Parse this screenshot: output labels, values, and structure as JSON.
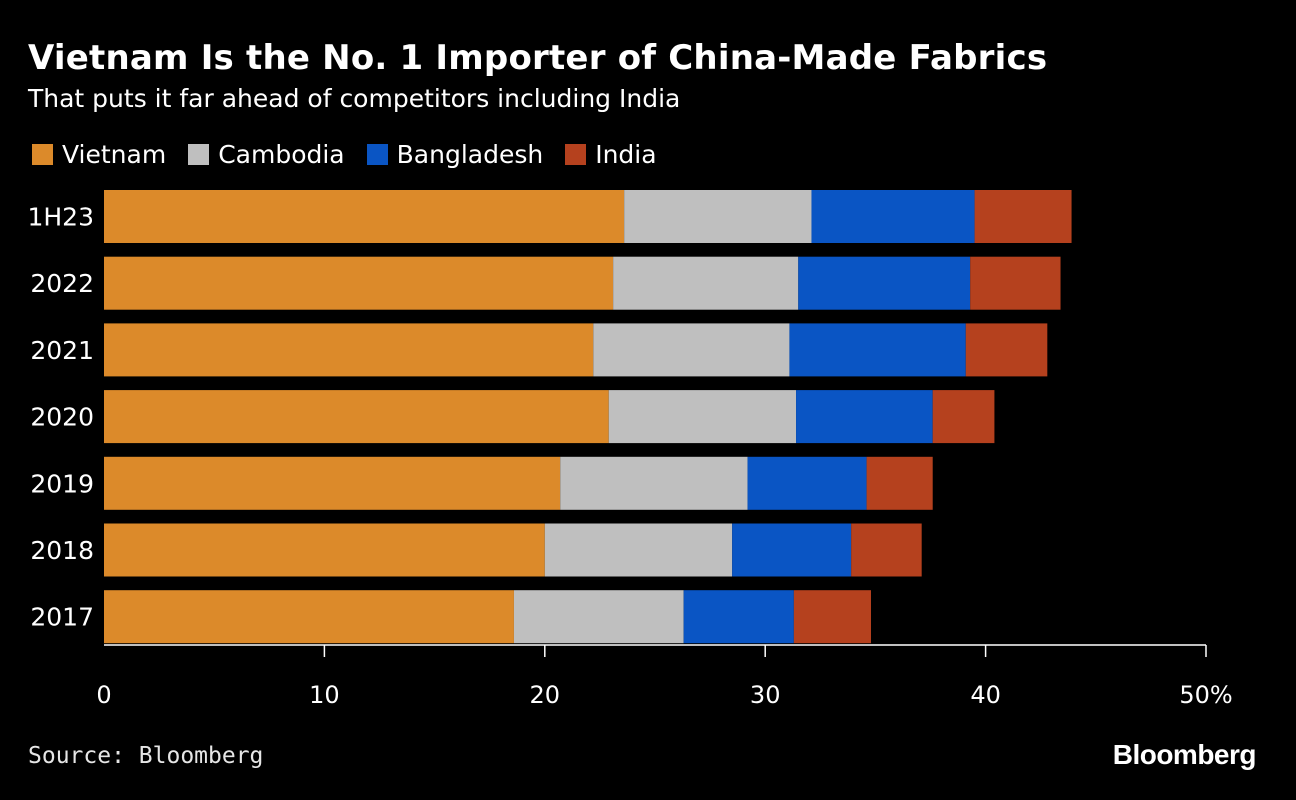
{
  "header": {
    "title": "Vietnam Is the No. 1 Importer of China-Made Fabrics",
    "subtitle": "That puts it far ahead of competitors including India"
  },
  "footer": {
    "source": "Source: Bloomberg",
    "brand": "Bloomberg"
  },
  "colors": {
    "vietnam": "#dc8a2a",
    "cambodia": "#bfbfbf",
    "bangladesh": "#0a55c4",
    "india": "#b5411e",
    "background": "#000000",
    "text": "#ffffff"
  },
  "chart_data": {
    "type": "bar",
    "orientation": "horizontal",
    "stacked": true,
    "title": "Vietnam Is the No. 1 Importer of China-Made Fabrics",
    "subtitle": "That puts it far ahead of competitors including India",
    "categories": [
      "1H23",
      "2022",
      "2021",
      "2020",
      "2019",
      "2018",
      "2017"
    ],
    "series": [
      {
        "name": "Vietnam",
        "color": "#dc8a2a",
        "values": [
          23.6,
          23.1,
          22.2,
          22.9,
          20.7,
          20.0,
          18.6
        ]
      },
      {
        "name": "Cambodia",
        "color": "#bfbfbf",
        "values": [
          8.5,
          8.4,
          8.9,
          8.5,
          8.5,
          8.5,
          7.7
        ]
      },
      {
        "name": "Bangladesh",
        "color": "#0a55c4",
        "values": [
          7.4,
          7.8,
          8.0,
          6.2,
          5.4,
          5.4,
          5.0
        ]
      },
      {
        "name": "India",
        "color": "#b5411e",
        "values": [
          4.4,
          4.1,
          3.7,
          2.8,
          3.0,
          3.2,
          3.5
        ]
      }
    ],
    "xlim": [
      0,
      50
    ],
    "xticks": [
      0,
      10,
      20,
      30,
      40,
      50
    ],
    "xtick_labels": [
      "0",
      "10",
      "20",
      "30",
      "40",
      "50%"
    ],
    "xlabel": "",
    "ylabel": "",
    "legend": "top-left",
    "grid": false
  }
}
